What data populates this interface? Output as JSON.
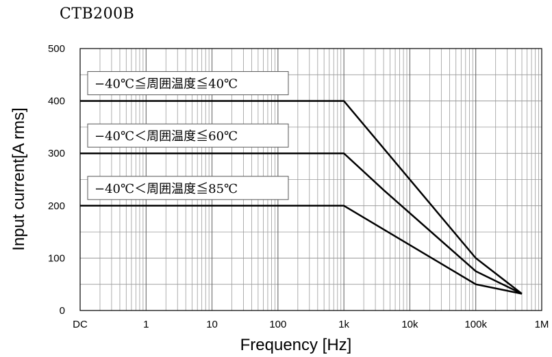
{
  "page": {
    "title": "CTB200B"
  },
  "chart_data": {
    "type": "line",
    "title": "CTB200B",
    "xlabel": "Frequency [Hz]",
    "ylabel": "Input current[A rms]",
    "x_scale": "log",
    "x_ticks": [
      {
        "label": "DC",
        "value": 0.1
      },
      {
        "label": "1",
        "value": 1
      },
      {
        "label": "10",
        "value": 10
      },
      {
        "label": "100",
        "value": 100
      },
      {
        "label": "1k",
        "value": 1000
      },
      {
        "label": "10k",
        "value": 10000
      },
      {
        "label": "100k",
        "value": 100000
      },
      {
        "label": "1M",
        "value": 1000000
      }
    ],
    "y_ticks": [
      0,
      100,
      200,
      300,
      400,
      500
    ],
    "ylim": [
      0,
      500
    ],
    "grid": true,
    "series": [
      {
        "name": "−40℃≦周囲温度≦40℃",
        "points": [
          {
            "x": 0.1,
            "y": 400
          },
          {
            "x": 1000,
            "y": 400
          },
          {
            "x": 100000,
            "y": 100
          },
          {
            "x": 500000,
            "y": 32
          }
        ]
      },
      {
        "name": "−40℃＜周囲温度≦60℃",
        "points": [
          {
            "x": 0.1,
            "y": 300
          },
          {
            "x": 1000,
            "y": 300
          },
          {
            "x": 4000,
            "y": 230
          },
          {
            "x": 100000,
            "y": 75
          },
          {
            "x": 500000,
            "y": 32
          }
        ]
      },
      {
        "name": "−40℃＜周囲温度≦85℃",
        "points": [
          {
            "x": 0.1,
            "y": 200
          },
          {
            "x": 1000,
            "y": 200
          },
          {
            "x": 100000,
            "y": 50
          },
          {
            "x": 500000,
            "y": 32
          }
        ]
      }
    ],
    "colors": {
      "line": "#000000",
      "grid": "#9a9a9a",
      "frame": "#000000"
    }
  }
}
